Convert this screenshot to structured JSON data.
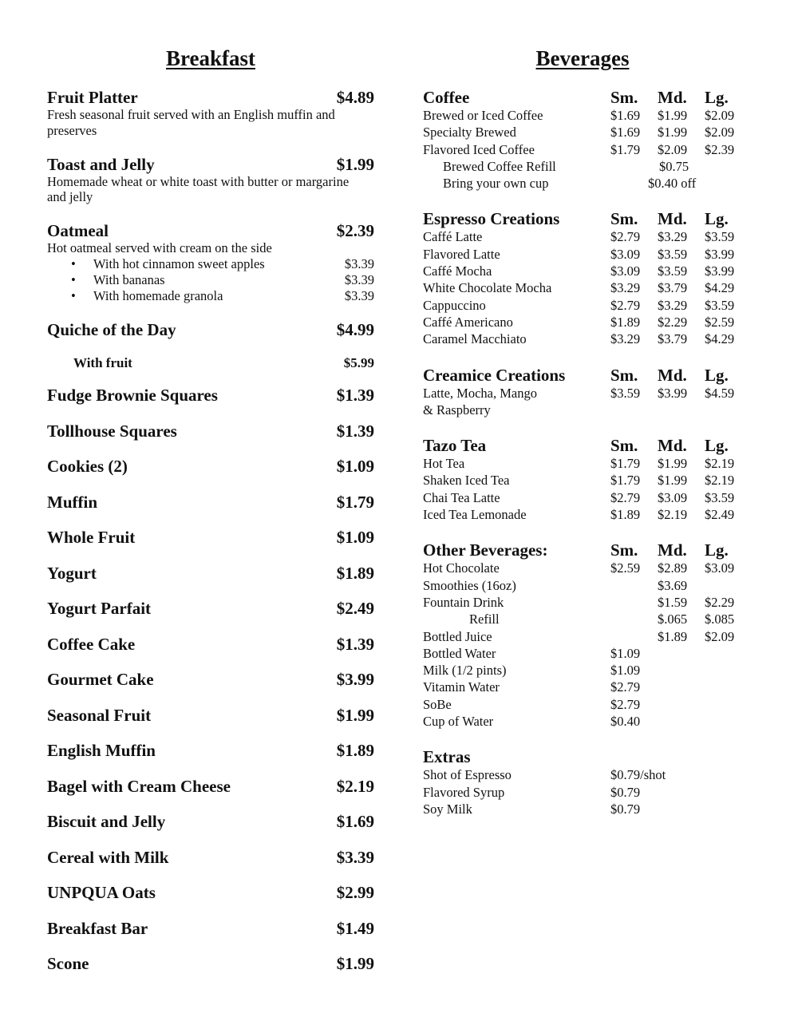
{
  "breakfast": {
    "title": "Breakfast",
    "items": [
      {
        "name": "Fruit Platter",
        "price": "$4.89",
        "description": "Fresh seasonal fruit served with an English muffin and preserves"
      },
      {
        "name": "Toast and Jelly",
        "price": "$1.99",
        "description": "Homemade wheat or white toast with butter or margarine and jelly"
      },
      {
        "name": "Oatmeal",
        "price": "$2.39",
        "description": "Hot oatmeal served with cream on the side",
        "options": [
          {
            "label": "With hot cinnamon sweet apples",
            "price": "$3.39"
          },
          {
            "label": "With bananas",
            "price": "$3.39"
          },
          {
            "label": "With homemade granola",
            "price": "$3.39"
          }
        ]
      },
      {
        "name": "Quiche of the Day",
        "price": "$4.99",
        "variants": [
          {
            "label": "With fruit",
            "price": "$5.99"
          }
        ]
      },
      {
        "name": "Fudge Brownie Squares",
        "price": "$1.39"
      },
      {
        "name": "Tollhouse Squares",
        "price": "$1.39"
      },
      {
        "name": "Cookies (2)",
        "price": "$1.09"
      },
      {
        "name": "Muffin",
        "price": "$1.79"
      },
      {
        "name": "Whole Fruit",
        "price": "$1.09"
      },
      {
        "name": "Yogurt",
        "price": "$1.89"
      },
      {
        "name": "Yogurt Parfait",
        "price": "$2.49"
      },
      {
        "name": "Coffee Cake",
        "price": "$1.39"
      },
      {
        "name": "Gourmet Cake",
        "price": "$3.99"
      },
      {
        "name": "Seasonal Fruit",
        "price": "$1.99"
      },
      {
        "name": "English Muffin",
        "price": "$1.89"
      },
      {
        "name": "Bagel with Cream Cheese",
        "price": "$2.19"
      },
      {
        "name": "Biscuit and Jelly",
        "price": "$1.69"
      },
      {
        "name": "Cereal with Milk",
        "price": "$3.39"
      },
      {
        "name": "UNPQUA Oats",
        "price": "$2.99"
      },
      {
        "name": "Breakfast Bar",
        "price": "$1.49"
      },
      {
        "name": "Scone",
        "price": "$1.99"
      }
    ]
  },
  "beverages": {
    "title": "Beverages",
    "sections": [
      {
        "title": "Coffee",
        "sm": "Sm.",
        "md": "Md.",
        "lg": "Lg.",
        "rows": [
          {
            "name": "Brewed or Iced Coffee",
            "sm": "$1.69",
            "md": "$1.99",
            "lg": "$2.09"
          },
          {
            "name": "Specialty Brewed",
            "sm": "$1.69",
            "md": "$1.99",
            "lg": "$2.09"
          },
          {
            "name": "Flavored Iced Coffee",
            "sm": "$1.79",
            "md": "$2.09",
            "lg": "$2.39"
          },
          {
            "name": "Brewed Coffee Refill",
            "md": "$0.75",
            "sub": true
          },
          {
            "name": "Bring your own cup",
            "md": "$0.40 off",
            "sub": true
          }
        ]
      },
      {
        "title": "Espresso Creations",
        "sm": "Sm.",
        "md": "Md.",
        "lg": "Lg.",
        "rows": [
          {
            "name": "Caffé Latte",
            "sm": "$2.79",
            "md": "$3.29",
            "lg": "$3.59"
          },
          {
            "name": "Flavored Latte",
            "sm": "$3.09",
            "md": "$3.59",
            "lg": "$3.99"
          },
          {
            "name": "Caffé Mocha",
            "sm": "$3.09",
            "md": "$3.59",
            "lg": "$3.99"
          },
          {
            "name": "White Chocolate Mocha",
            "sm": "$3.29",
            "md": "$3.79",
            "lg": "$4.29"
          },
          {
            "name": "Cappuccino",
            "sm": "$2.79",
            "md": "$3.29",
            "lg": "$3.59"
          },
          {
            "name": "Caffé Americano",
            "sm": "$1.89",
            "md": "$2.29",
            "lg": "$2.59"
          },
          {
            "name": "Caramel Macchiato",
            "sm": "$3.29",
            "md": "$3.79",
            "lg": "$4.29"
          }
        ]
      },
      {
        "title": "Creamice Creations",
        "sm": "Sm.",
        "md": "Md.",
        "lg": "Lg.",
        "rows": [
          {
            "name": "Latte, Mocha, Mango",
            "sm": "$3.59",
            "md": "$3.99",
            "lg": "$4.59"
          },
          {
            "name": "& Raspberry"
          }
        ]
      },
      {
        "title": "Tazo Tea",
        "sm": "Sm.",
        "md": "Md.",
        "lg": "Lg.",
        "rows": [
          {
            "name": "Hot Tea",
            "sm": "$1.79",
            "md": "$1.99",
            "lg": "$2.19"
          },
          {
            "name": "Shaken Iced Tea",
            "sm": "$1.79",
            "md": "$1.99",
            "lg": "$2.19"
          },
          {
            "name": "Chai Tea Latte",
            "sm": "$2.79",
            "md": "$3.09",
            "lg": "$3.59"
          },
          {
            "name": "Iced Tea Lemonade",
            "sm": "$1.89",
            "md": "$2.19",
            "lg": "$2.49"
          }
        ]
      },
      {
        "title": "Other Beverages:",
        "sm": "Sm.",
        "md": "Md.",
        "lg": "Lg.",
        "rows": [
          {
            "name": "Hot Chocolate",
            "sm": "$2.59",
            "md": "$2.89",
            "lg": "$3.09"
          },
          {
            "name": "Smoothies (16oz)",
            "md": "$3.69"
          },
          {
            "name": "Fountain Drink",
            "md": "$1.59",
            "lg": "$2.29"
          },
          {
            "name": "Refill",
            "md": "$.065",
            "lg": "$.085",
            "sub": true
          },
          {
            "name": "Bottled Juice",
            "md": "$1.89",
            "lg": "$2.09"
          },
          {
            "name": "Bottled Water",
            "sm": "$1.09"
          },
          {
            "name": "Milk (1/2 pints)",
            "sm": "$1.09"
          },
          {
            "name": "Vitamin Water",
            "sm": "$2.79"
          },
          {
            "name": "SoBe",
            "sm": "$2.79"
          },
          {
            "name": "Cup of Water",
            "sm": "$0.40"
          }
        ]
      },
      {
        "title": "Extras",
        "rows": [
          {
            "name": "Shot of Espresso",
            "sm": "$0.79/shot"
          },
          {
            "name": "Flavored Syrup",
            "sm": "$0.79"
          },
          {
            "name": "Soy Milk",
            "sm": "$0.79"
          }
        ]
      }
    ]
  }
}
